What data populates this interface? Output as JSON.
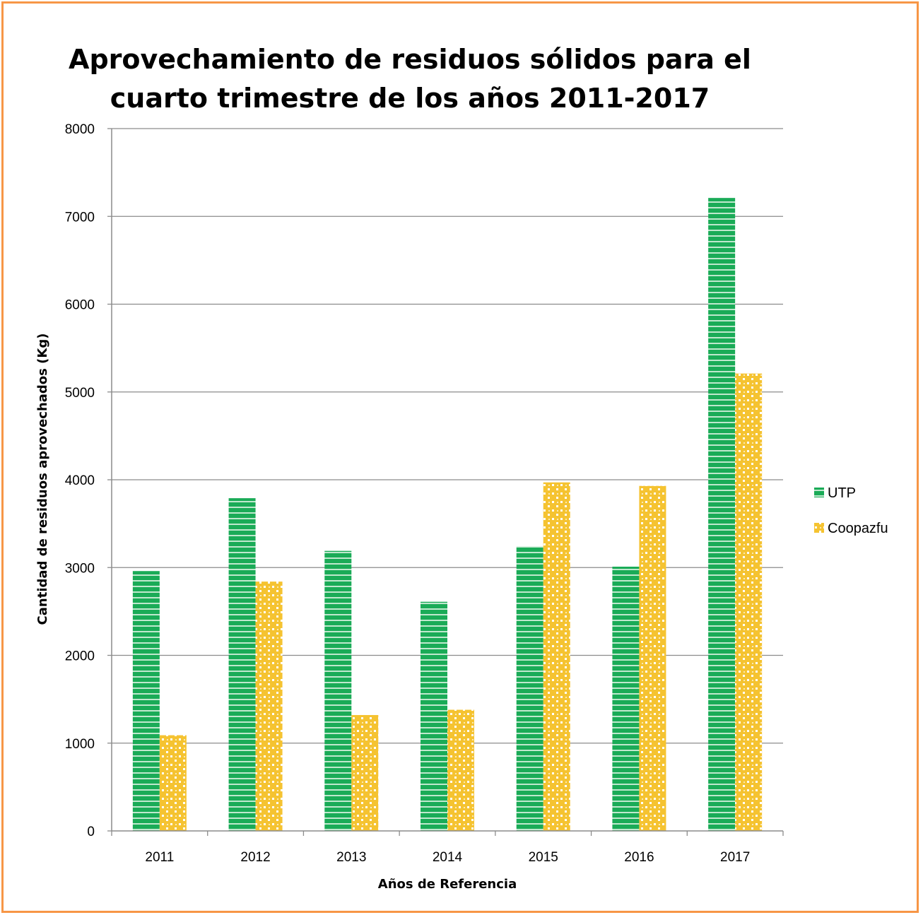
{
  "chart_data": {
    "type": "bar",
    "title": [
      "Aprovechamiento de residuos sólidos para el",
      "cuarto trimestre de los años 2011-2017"
    ],
    "xlabel": "Años de Referencia",
    "ylabel": "Cantidad de residuos aprovechados (Kg)",
    "categories": [
      "2011",
      "2012",
      "2013",
      "2014",
      "2015",
      "2016",
      "2017"
    ],
    "ylim": [
      0,
      8000
    ],
    "yticks": [
      0,
      1000,
      2000,
      3000,
      4000,
      5000,
      6000,
      7000,
      8000
    ],
    "grid": true,
    "legend_position": "right",
    "series": [
      {
        "name": "UTP",
        "color": "#1aab57",
        "pattern": "horizontal-stripes",
        "values": [
          2960,
          3790,
          3190,
          2610,
          3240,
          3010,
          7210
        ]
      },
      {
        "name": "Coopazfu",
        "color": "#f5c331",
        "pattern": "dots",
        "values": [
          1090,
          2840,
          1320,
          1380,
          3970,
          3930,
          5210
        ]
      }
    ]
  }
}
